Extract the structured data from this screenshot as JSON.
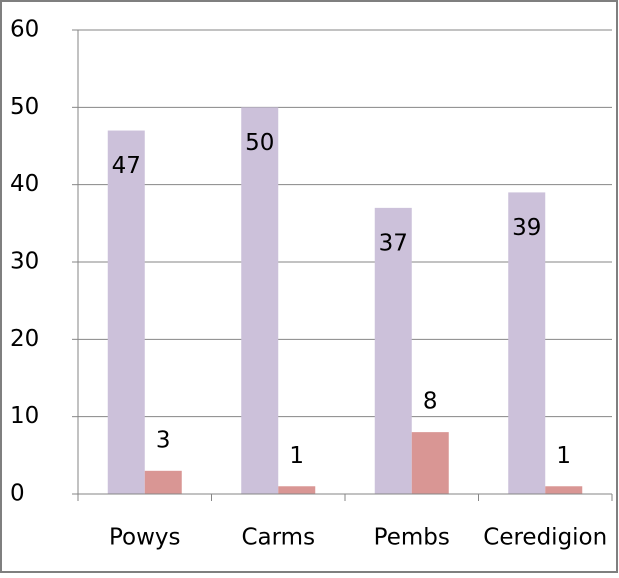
{
  "chart_data": {
    "type": "bar",
    "categories": [
      "Powys",
      "Carms",
      "Pembs",
      "Ceredigion"
    ],
    "series": [
      {
        "color": "#ccc1da",
        "values": [
          47,
          50,
          37,
          39
        ]
      },
      {
        "color": "#d99694",
        "values": [
          3,
          1,
          8,
          1
        ]
      }
    ],
    "ylim": [
      0,
      60
    ],
    "yticks": [
      0,
      10,
      20,
      30,
      40,
      50,
      60
    ],
    "grid": true
  }
}
